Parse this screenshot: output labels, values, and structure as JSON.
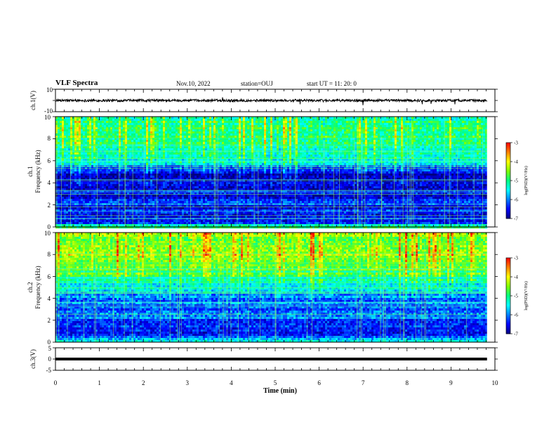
{
  "header": {
    "title": "VLF Spectra",
    "date": "Nov.10, 2022",
    "station": "station=OUJ",
    "start_ut": "start  UT =   11: 20: 0"
  },
  "chart_data": [
    {
      "type": "line",
      "panel": "ch1-waveform",
      "ylabel": "ch.1(V)",
      "ylim": [
        -10,
        10
      ],
      "yticks": [
        "10",
        "-10"
      ],
      "series": [
        {
          "description": "noisy waveform around 0 V",
          "level": 0
        }
      ]
    },
    {
      "type": "heatmap",
      "panel": "ch1-spectrogram",
      "ylabel_top": "ch.1",
      "ylabel": "Frequency  (kHz)",
      "ylim": [
        0,
        10
      ],
      "yticks": [
        "0",
        "2",
        "4",
        "6",
        "8",
        "10"
      ],
      "colorbar": {
        "label": "log(PSD)(V²/Hz)",
        "range": [
          -7,
          -3
        ],
        "ticks": [
          "-3",
          "-4",
          "-5",
          "-6",
          "-7"
        ]
      },
      "profile_khz": [
        0,
        0.5,
        1.5,
        2.5,
        3.5,
        4.5,
        5.2,
        5.8,
        6.5,
        8,
        10
      ],
      "profile_log_psd": [
        -5.0,
        -6.6,
        -6.4,
        -6.5,
        -6.7,
        -6.8,
        -6.3,
        -5.6,
        -5.2,
        -5.0,
        -5.0
      ]
    },
    {
      "type": "heatmap",
      "panel": "ch2-spectrogram",
      "ylabel_top": "ch.2",
      "ylabel": "Frequency  (kHz)",
      "ylim": [
        0,
        10
      ],
      "yticks": [
        "0",
        "2",
        "4",
        "6",
        "8",
        "10"
      ],
      "colorbar": {
        "label": "log(PSD)(V²/Hz)",
        "range": [
          -7,
          -3
        ],
        "ticks": [
          "-3",
          "-4",
          "-5",
          "-6",
          "-7"
        ]
      },
      "profile_khz": [
        0,
        0.5,
        1.5,
        2.5,
        3.5,
        4.5,
        5.5,
        6.5,
        8,
        10
      ],
      "profile_log_psd": [
        -5.0,
        -6.4,
        -6.2,
        -6.2,
        -6.0,
        -5.8,
        -5.3,
        -4.8,
        -4.4,
        -4.5
      ]
    },
    {
      "type": "line",
      "panel": "ch3-waveform",
      "ylabel": "ch.3(V)",
      "ylim": [
        -5,
        5
      ],
      "yticks": [
        "5",
        "0",
        "-5"
      ],
      "series": [
        {
          "description": "flat line",
          "level": 0
        }
      ]
    }
  ],
  "xaxis": {
    "label": "Time  (min)",
    "xlim": [
      0,
      10
    ],
    "ticks": [
      "0",
      "1",
      "2",
      "3",
      "4",
      "5",
      "6",
      "7",
      "8",
      "9",
      "10"
    ],
    "data_end_min": 9.82
  },
  "colors": {
    "colormap": [
      "#000080",
      "#0000ff",
      "#0080ff",
      "#00ffff",
      "#00ff80",
      "#80ff00",
      "#ffff00",
      "#ff8000",
      "#ff0000",
      "#ffffff"
    ]
  }
}
